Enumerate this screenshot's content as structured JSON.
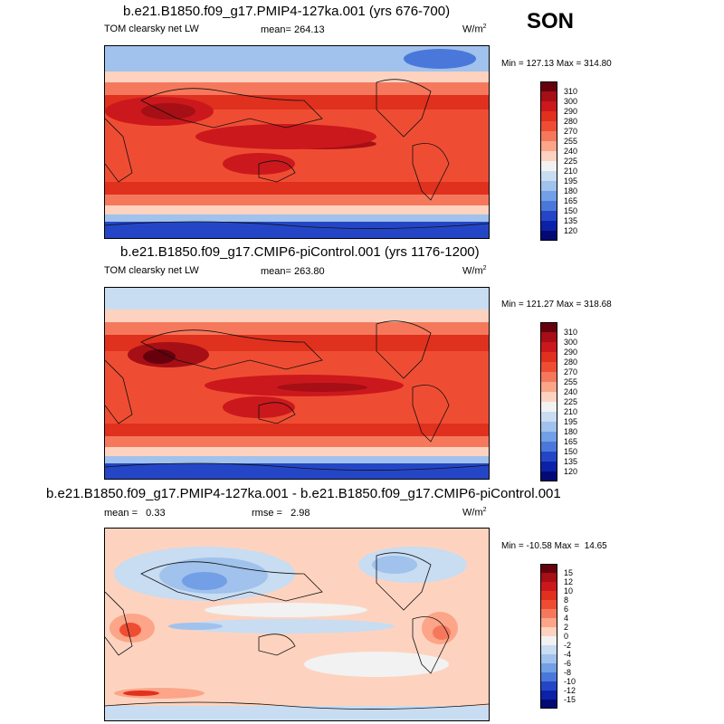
{
  "season": "SON",
  "panels": [
    {
      "title": "b.e21.B1850.f09_g17.PMIP4-127ka.001 (yrs 676-700)",
      "left_label": "TOM clearsky net LW",
      "center_label": "mean= 264.13",
      "units": "W/m",
      "units_sup": "2",
      "minmax": "Min = 127.13 Max = 314.80",
      "levels": [
        "310",
        "300",
        "290",
        "280",
        "270",
        "255",
        "240",
        "225",
        "210",
        "195",
        "180",
        "165",
        "150",
        "135",
        "120"
      ],
      "colors": [
        "#67000d",
        "#a50f15",
        "#cb181d",
        "#e0301e",
        "#ef4d33",
        "#f6785c",
        "#fca588",
        "#fdd3c0",
        "#f2f2f2",
        "#c8dcf2",
        "#a0c2ec",
        "#729fe6",
        "#4a78da",
        "#2446c6",
        "#0b22a8",
        "#030a73"
      ]
    },
    {
      "title": "b.e21.B1850.f09_g17.CMIP6-piControl.001 (yrs 1176-1200)",
      "left_label": "TOM clearsky net LW",
      "center_label": "mean= 263.80",
      "units": "W/m",
      "units_sup": "2",
      "minmax": "Min = 121.27 Max = 318.68",
      "levels": [
        "310",
        "300",
        "290",
        "280",
        "270",
        "255",
        "240",
        "225",
        "210",
        "195",
        "180",
        "165",
        "150",
        "135",
        "120"
      ],
      "colors": [
        "#67000d",
        "#a50f15",
        "#cb181d",
        "#e0301e",
        "#ef4d33",
        "#f6785c",
        "#fca588",
        "#fdd3c0",
        "#f2f2f2",
        "#c8dcf2",
        "#a0c2ec",
        "#729fe6",
        "#4a78da",
        "#2446c6",
        "#0b22a8",
        "#030a73"
      ]
    },
    {
      "title": "b.e21.B1850.f09_g17.PMIP4-127ka.001 - b.e21.B1850.f09_g17.CMIP6-piControl.001",
      "left_label": "mean =   0.33",
      "center_label": "rmse =   2.98",
      "units": "W/m",
      "units_sup": "2",
      "minmax": "Min = -10.58 Max =  14.65",
      "levels": [
        "15",
        "12",
        "10",
        "8",
        "6",
        "4",
        "2",
        "0",
        "-2",
        "-4",
        "-6",
        "-8",
        "-10",
        "-12",
        "-15"
      ],
      "colors": [
        "#67000d",
        "#a50f15",
        "#cb181d",
        "#e0301e",
        "#ef4d33",
        "#f6785c",
        "#fca588",
        "#fdd3c0",
        "#f2f2f2",
        "#c8dcf2",
        "#a0c2ec",
        "#729fe6",
        "#4a78da",
        "#2446c6",
        "#0b22a8",
        "#030a73"
      ]
    }
  ],
  "chart_data": [
    {
      "type": "heatmap",
      "title": "b.e21.B1850.f09_g17.PMIP4-127ka.001 (yrs 676-700)",
      "variable": "TOM clearsky net LW",
      "units": "W/m2",
      "mean": 264.13,
      "min": 127.13,
      "max": 314.8,
      "contour_levels": [
        120,
        135,
        150,
        165,
        180,
        195,
        210,
        225,
        240,
        255,
        270,
        280,
        290,
        300,
        310
      ]
    },
    {
      "type": "heatmap",
      "title": "b.e21.B1850.f09_g17.CMIP6-piControl.001 (yrs 1176-1200)",
      "variable": "TOM clearsky net LW",
      "units": "W/m2",
      "mean": 263.8,
      "min": 121.27,
      "max": 318.68,
      "contour_levels": [
        120,
        135,
        150,
        165,
        180,
        195,
        210,
        225,
        240,
        255,
        270,
        280,
        290,
        300,
        310
      ]
    },
    {
      "type": "heatmap",
      "title": "b.e21.B1850.f09_g17.PMIP4-127ka.001 - b.e21.B1850.f09_g17.CMIP6-piControl.001",
      "units": "W/m2",
      "mean": 0.33,
      "rmse": 2.98,
      "min": -10.58,
      "max": 14.65,
      "contour_levels": [
        -15,
        -12,
        -10,
        -8,
        -6,
        -4,
        -2,
        0,
        2,
        4,
        6,
        8,
        10,
        12,
        15
      ]
    }
  ]
}
